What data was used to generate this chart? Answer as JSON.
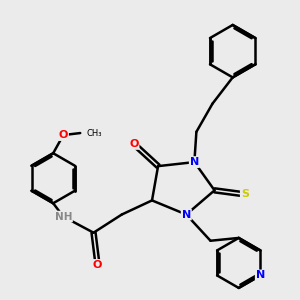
{
  "background_color": "#ebebeb",
  "bond_color": "#000000",
  "bond_width": 1.8,
  "figsize": [
    3.0,
    3.0
  ],
  "dpi": 100,
  "atom_colors": {
    "N": "#0000ff",
    "O": "#ff0000",
    "S": "#cccc00",
    "NH": "#888888",
    "C": "#000000"
  },
  "font_size": 8.0
}
